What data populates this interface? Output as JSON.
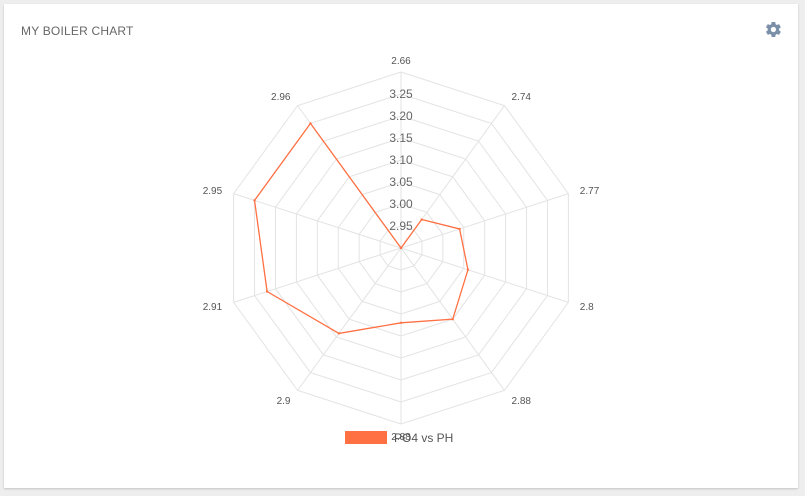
{
  "card": {
    "title": "MY BOILER CHART"
  },
  "icons": {
    "settings": "gear-icon"
  },
  "colors": {
    "series": "#ff7043",
    "grid": "#e3e3e3",
    "legend_box": "#ff7043"
  },
  "chart_data": {
    "type": "radar",
    "title": "",
    "categories": [
      "2.66",
      "2.74",
      "2.77",
      "2.8",
      "2.88",
      "2.88",
      "2.9",
      "2.91",
      "2.95",
      "2.96"
    ],
    "scale_ticks": [
      "2.95",
      "3.00",
      "3.05",
      "3.10",
      "3.15",
      "3.20",
      "3.25"
    ],
    "r_range": [
      2.9,
      3.3
    ],
    "series": [
      {
        "name": "PO4 vs PH",
        "values": [
          2.9,
          2.98,
          3.04,
          3.06,
          3.1,
          3.07,
          3.14,
          3.22,
          3.25,
          3.25
        ]
      }
    ],
    "legend": "bottom",
    "grid": true
  }
}
